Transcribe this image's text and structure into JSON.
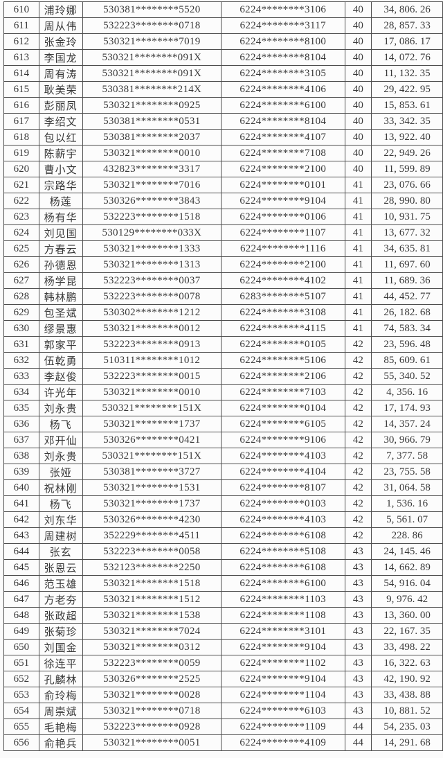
{
  "colors": {
    "page_background": "#fbfbfb",
    "cell_background": "#fcfcfc",
    "border": "#4d4d4d",
    "text": "#383838"
  },
  "table": {
    "cell_names": [
      "row-index",
      "name",
      "id-number",
      "card-number",
      "group-code",
      "amount"
    ],
    "rows": [
      [
        "610",
        "浦玲娜",
        "530381********5520",
        "6224********3106",
        "40",
        "34, 806. 26"
      ],
      [
        "611",
        "周从伟",
        "532223********0718",
        "6224********3117",
        "40",
        "28, 857. 33"
      ],
      [
        "612",
        "张金玲",
        "530321********7019",
        "6224********8100",
        "40",
        "17, 086. 17"
      ],
      [
        "613",
        "李国龙",
        "530321********091X",
        "6224********8104",
        "40",
        "14, 072. 76"
      ],
      [
        "614",
        "周有涛",
        "530321********091X",
        "6224********3105",
        "40",
        "11, 132. 35"
      ],
      [
        "615",
        "耿美荣",
        "530381********214X",
        "6224********4106",
        "40",
        "29, 422. 95"
      ],
      [
        "616",
        "彭丽凤",
        "530321********0925",
        "6224********6100",
        "40",
        "15, 853. 61"
      ],
      [
        "617",
        "李绍文",
        "530381********0531",
        "6224********8104",
        "40",
        "33, 342. 35"
      ],
      [
        "618",
        "包以红",
        "530381********2037",
        "6224********4107",
        "40",
        "13, 922. 40"
      ],
      [
        "619",
        "陈薪宇",
        "530321********0010",
        "6224********7108",
        "40",
        "22, 949. 26"
      ],
      [
        "620",
        "曹小文",
        "432823********3317",
        "6224********2100",
        "40",
        "11, 599. 89"
      ],
      [
        "621",
        "宗路华",
        "530321********7016",
        "6224********0101",
        "41",
        "23, 076. 66"
      ],
      [
        "622",
        "杨莲",
        "530326********3843",
        "6224********9104",
        "41",
        "28, 990. 80"
      ],
      [
        "623",
        "杨有华",
        "532223********1518",
        "6224********0106",
        "41",
        "10, 931. 75"
      ],
      [
        "624",
        "刘见国",
        "530129********033X",
        "6224********1107",
        "41",
        "13, 677. 32"
      ],
      [
        "625",
        "方春云",
        "530321********1333",
        "6224********1116",
        "41",
        "34, 635. 81"
      ],
      [
        "626",
        "孙德恩",
        "530321********1313",
        "6224********2100",
        "41",
        "11, 697. 60"
      ],
      [
        "627",
        "杨学昆",
        "532223********0037",
        "6224********4102",
        "41",
        "11, 689. 36"
      ],
      [
        "628",
        "韩林鹏",
        "532223********0078",
        "6283********5107",
        "41",
        "44, 452. 77"
      ],
      [
        "629",
        "包圣斌",
        "530302********1212",
        "6224********3108",
        "41",
        "26, 182. 68"
      ],
      [
        "630",
        "缪景惠",
        "530321********0012",
        "6224********4115",
        "41",
        "74, 583. 34"
      ],
      [
        "631",
        "郭家平",
        "532223********0913",
        "6224********0105",
        "42",
        "23, 596. 48"
      ],
      [
        "632",
        "伍乾勇",
        "510311********1012",
        "6224********5106",
        "42",
        "85, 609. 61"
      ],
      [
        "633",
        "李赵俊",
        "532223********0015",
        "6224********2106",
        "42",
        "55, 340. 52"
      ],
      [
        "634",
        "许光年",
        "530321********0010",
        "6224********7103",
        "42",
        "4, 356. 16"
      ],
      [
        "635",
        "刘永贵",
        "530321********151X",
        "6224********0104",
        "42",
        "17, 174. 93"
      ],
      [
        "636",
        "杨飞",
        "530321********1737",
        "6224********6105",
        "42",
        "14, 357. 24"
      ],
      [
        "637",
        "邓开仙",
        "530326********0421",
        "6224********9106",
        "42",
        "30, 966. 79"
      ],
      [
        "638",
        "刘永贵",
        "530321********151X",
        "6224********4103",
        "42",
        "7, 377. 58"
      ],
      [
        "639",
        "张娅",
        "530381********3727",
        "6224********4104",
        "42",
        "23, 755. 58"
      ],
      [
        "640",
        "祝林刚",
        "530321********1531",
        "6224********8107",
        "42",
        "31, 064. 58"
      ],
      [
        "641",
        "杨飞",
        "530321********1737",
        "6224********0103",
        "42",
        "1, 536. 16"
      ],
      [
        "642",
        "刘东华",
        "530326********4230",
        "6224********4103",
        "42",
        "5, 561. 07"
      ],
      [
        "643",
        "周建树",
        "352229********4511",
        "6224********6108",
        "42",
        "228. 86"
      ],
      [
        "644",
        "张玄",
        "532223********0058",
        "6224********5108",
        "43",
        "24, 145. 46"
      ],
      [
        "645",
        "张恩云",
        "532123********2250",
        "6224********6108",
        "43",
        "14, 662. 89"
      ],
      [
        "646",
        "范玉雄",
        "530321********1518",
        "6224********6100",
        "43",
        "54, 916. 04"
      ],
      [
        "647",
        "方老夯",
        "530321********1512",
        "6224********1103",
        "43",
        "9, 976. 42"
      ],
      [
        "648",
        "张政超",
        "530321********1538",
        "6224********1108",
        "43",
        "13, 360. 00"
      ],
      [
        "649",
        "张菊珍",
        "530321********7024",
        "6224********3101",
        "43",
        "22, 167. 35"
      ],
      [
        "650",
        "刘国金",
        "530321********0312",
        "6224********9104",
        "43",
        "33, 498. 22"
      ],
      [
        "651",
        "徐连平",
        "532223********0059",
        "6224********1102",
        "43",
        "16, 322. 63"
      ],
      [
        "652",
        "孔麟林",
        "530326********2525",
        "6224********9104",
        "43",
        "42, 190. 92"
      ],
      [
        "653",
        "俞玲梅",
        "530321********0028",
        "6224********1104",
        "43",
        "33, 438. 88"
      ],
      [
        "654",
        "周崇斌",
        "530321********0718",
        "6224********6103",
        "43",
        "10, 881. 52"
      ],
      [
        "655",
        "毛艳梅",
        "532223********0928",
        "6224********1109",
        "44",
        "54, 235. 03"
      ],
      [
        "656",
        "俞艳兵",
        "530321********0051",
        "6224********4109",
        "44",
        "14, 291. 68"
      ]
    ]
  }
}
